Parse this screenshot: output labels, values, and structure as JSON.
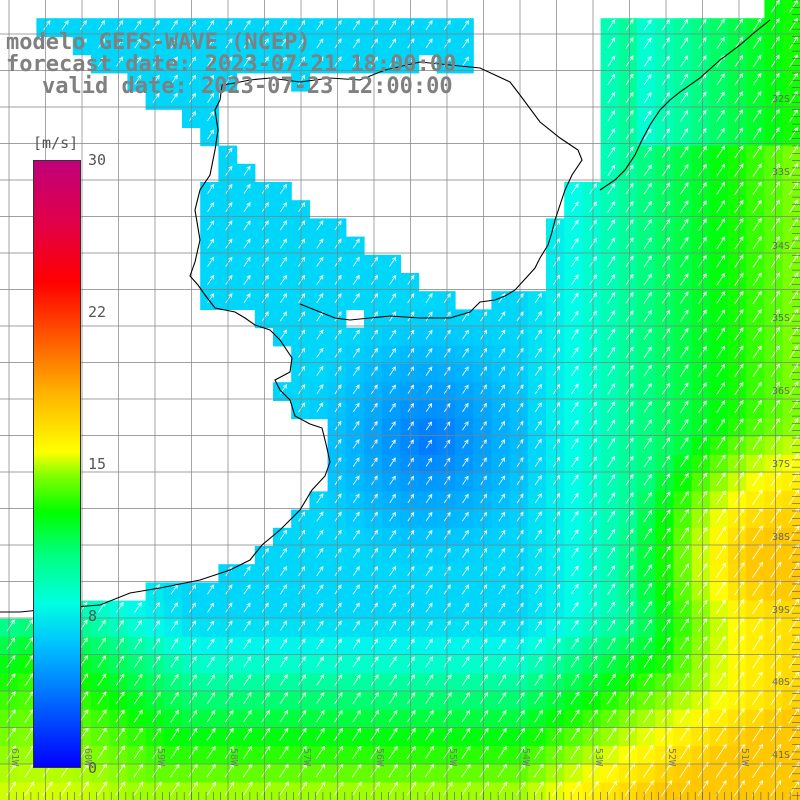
{
  "title": {
    "line1": "modelo GEFS-WAVE (NCEP)",
    "line2": "forecast date: 2023-07-21 18:00:00",
    "line3": "valid date: 2023-07-23 12:00:00"
  },
  "colorbar": {
    "unit": "[m/s]",
    "ticks": [
      "30",
      "22",
      "15",
      "8",
      "0"
    ],
    "tick_values": [
      30,
      22,
      15,
      8,
      0
    ],
    "range": [
      0,
      30
    ]
  },
  "latitudes": [
    "32S",
    "33S",
    "34S",
    "35S",
    "36S",
    "37S",
    "38S",
    "39S",
    "40S",
    "41S"
  ],
  "longitudes": [
    "61W",
    "60W",
    "59W",
    "58W",
    "57W",
    "56W",
    "55W",
    "54W",
    "53W",
    "52W",
    "51W"
  ],
  "colors": {
    "land": "#ffffff",
    "grid": "#808080",
    "coast": "#000000",
    "arrows": "#ffffff",
    "title": "#808080"
  }
}
